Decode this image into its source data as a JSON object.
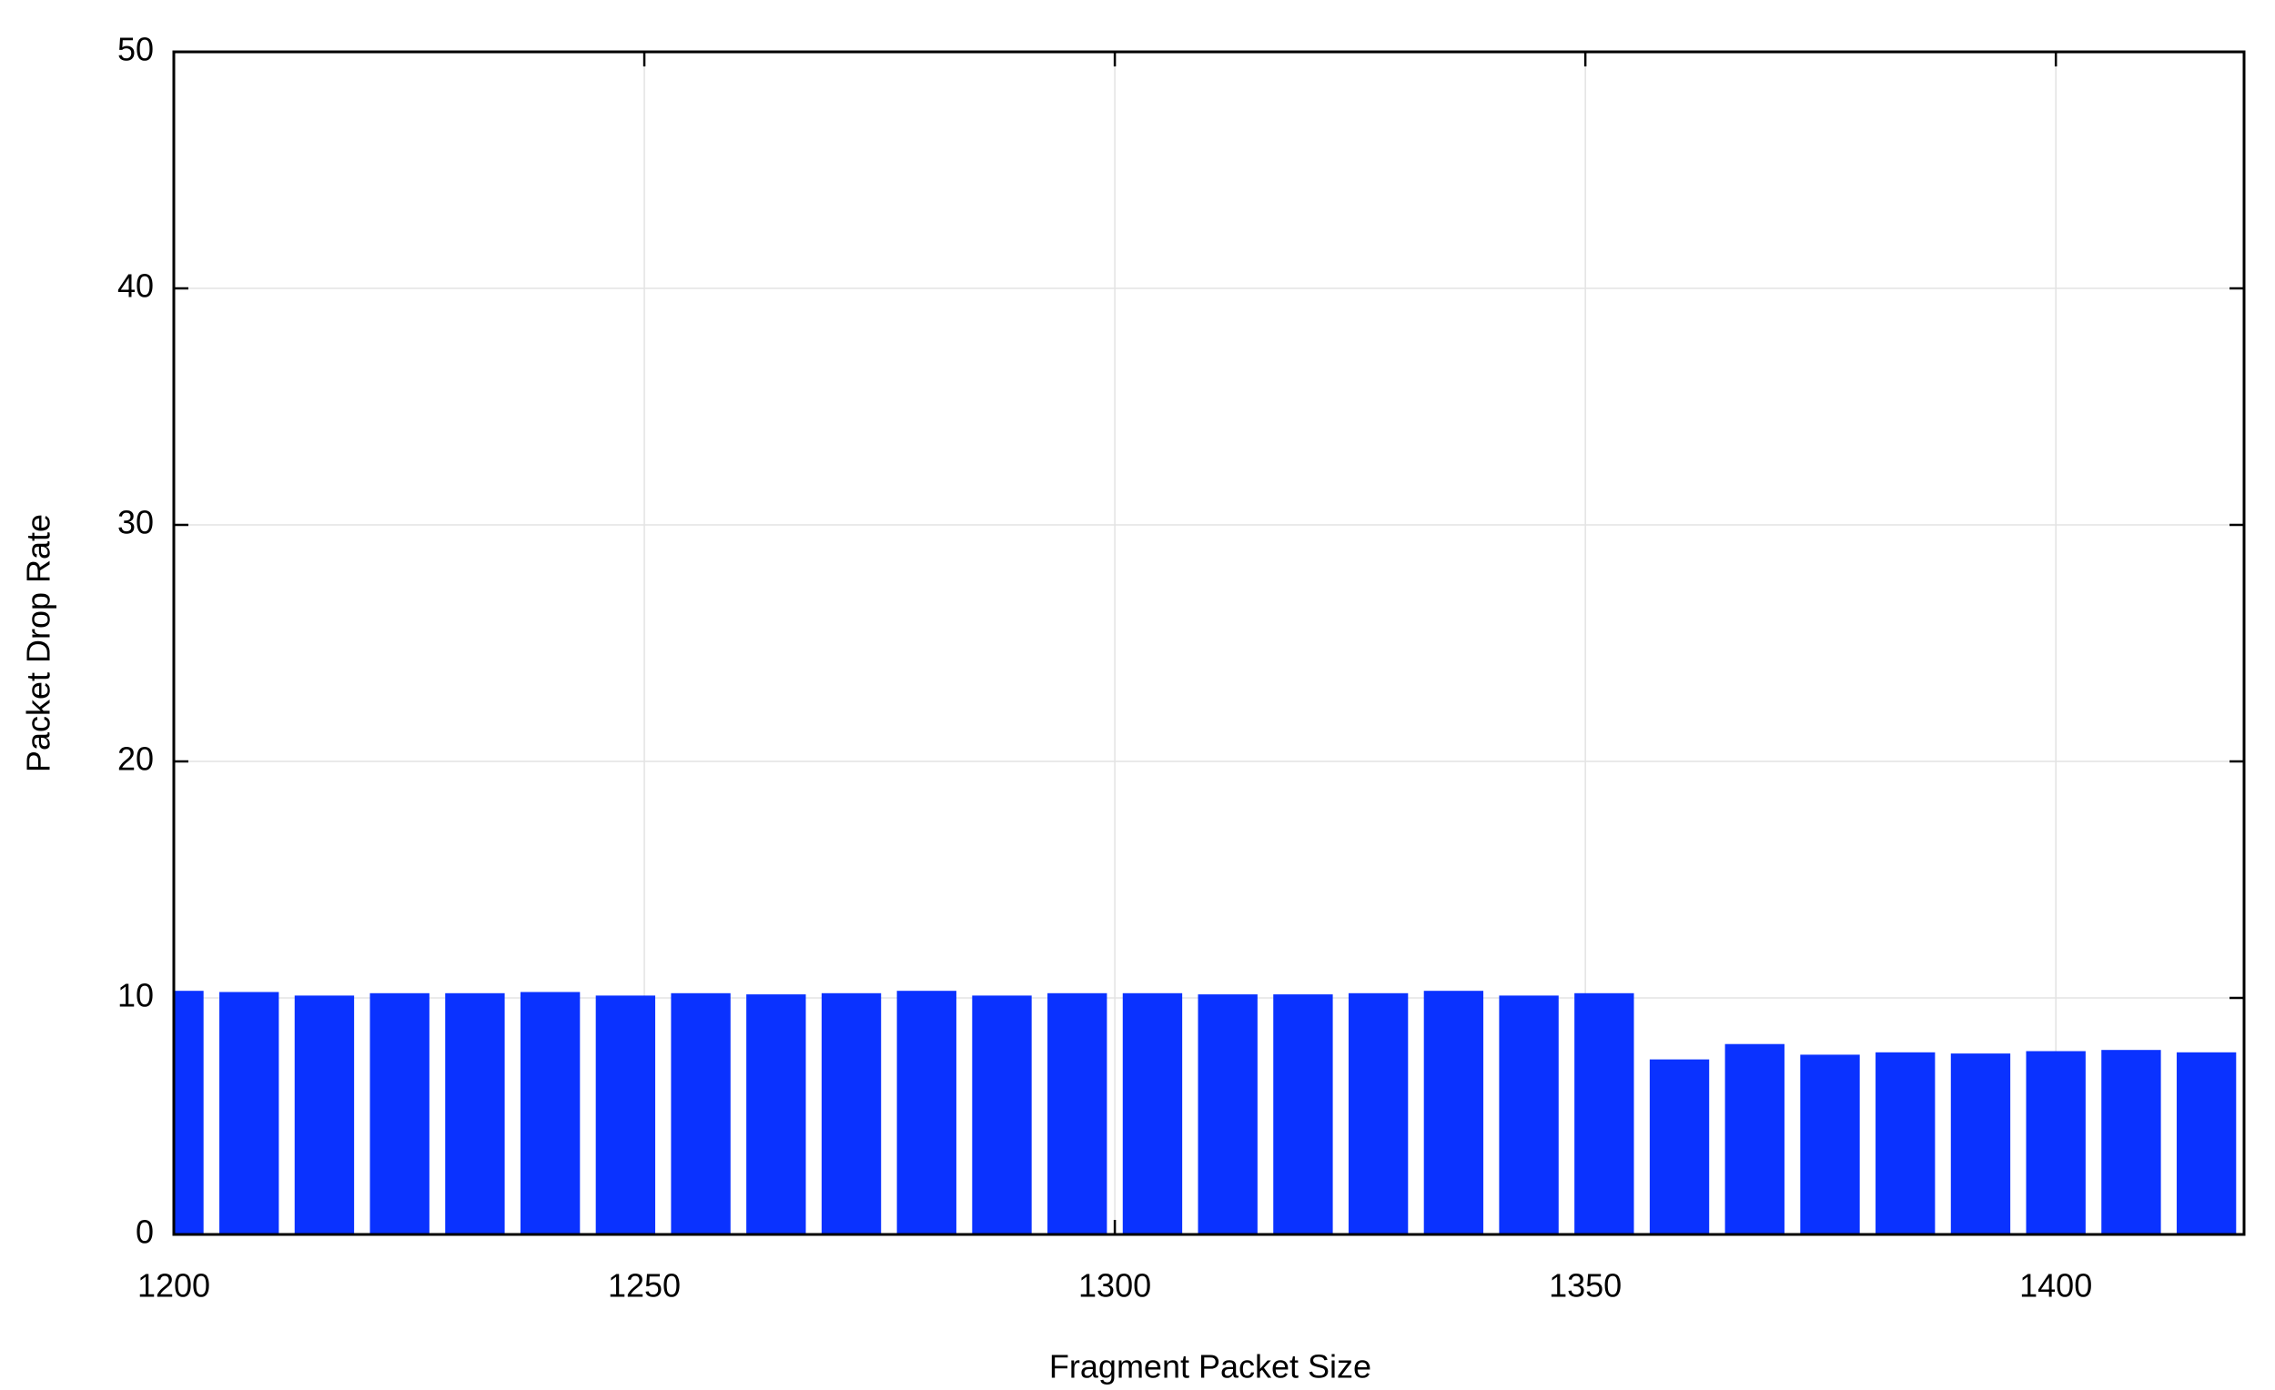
{
  "chart_data": {
    "type": "bar",
    "xlabel": "Fragment Packet Size",
    "ylabel": "Packet Drop Rate",
    "x": [
      1200,
      1208,
      1216,
      1224,
      1232,
      1240,
      1248,
      1256,
      1264,
      1272,
      1280,
      1288,
      1296,
      1304,
      1312,
      1320,
      1328,
      1336,
      1344,
      1352,
      1360,
      1368,
      1376,
      1384,
      1392,
      1400,
      1408,
      1416
    ],
    "values": [
      10.3,
      10.25,
      10.1,
      10.2,
      10.2,
      10.25,
      10.1,
      10.2,
      10.15,
      10.2,
      10.3,
      10.1,
      10.2,
      10.2,
      10.15,
      10.15,
      10.2,
      10.3,
      10.1,
      10.2,
      7.4,
      8.05,
      7.6,
      7.7,
      7.65,
      7.75,
      7.8,
      7.7
    ],
    "color": "#0a32ff",
    "xlim": [
      1200,
      1420
    ],
    "xticks": [
      1200,
      1250,
      1300,
      1350,
      1400
    ],
    "ylim": [
      0,
      50
    ],
    "yticks": [
      0,
      10,
      20,
      30,
      40,
      50
    ],
    "grid": true
  }
}
